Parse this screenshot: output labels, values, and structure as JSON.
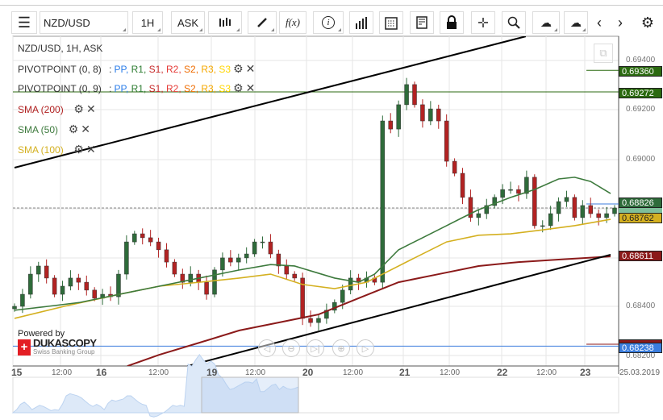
{
  "toolbar": {
    "symbol": "NZD/USD",
    "timeframe": "1H",
    "side": "ASK",
    "fx_label": "f(x)"
  },
  "legend": {
    "title": "NZD/USD, 1H, ASK",
    "pivot1": "PIVOTPOINT (0, 8)",
    "pivot2": "PIVOTPOINT (0, 9)",
    "sep": ":",
    "pivot_levels": [
      {
        "t": "PP",
        "c": "#2b7de9"
      },
      {
        "t": "R1",
        "c": "#2e7d32"
      },
      {
        "t": "S1",
        "c": "#c62828"
      },
      {
        "t": "R2",
        "c": "#e53935"
      },
      {
        "t": "S2",
        "c": "#ef6c00"
      },
      {
        "t": "R3",
        "c": "#f5a800"
      },
      {
        "t": "S3",
        "c": "#ffd600"
      }
    ],
    "sma200": "SMA (200)",
    "sma50": "SMA (50)",
    "sma100": "SMA (100)"
  },
  "colors": {
    "up": "#2e6b3a",
    "down": "#b22222",
    "sma200": "#8b1a1a",
    "sma50": "#3d7a3d",
    "sma100": "#d4b020",
    "trend": "#000000",
    "pp_blue": "#3b7ddd"
  },
  "price_ticks": [
    "0.69400",
    "0.69200",
    "0.69000",
    "0.68400",
    "0.68200"
  ],
  "price_tags": {
    "t1": "0.69360",
    "t2": "0.69272",
    "t3": "0.68826",
    "t4": "0.68762",
    "t5": "0.68611",
    "t6": "0.68238"
  },
  "time_axis": {
    "days": [
      "15",
      "16",
      "19",
      "20",
      "21",
      "22",
      "23"
    ],
    "noon": "12:00",
    "date": "25.03.2019"
  },
  "branding": {
    "powered": "Powered by",
    "name": "DUKASCOPY",
    "sub": "Swiss Banking Group"
  },
  "chart_data": {
    "type": "candlestick",
    "symbol": "NZD/USD",
    "interval": "1H",
    "ylim": [
      0.6814,
      0.695
    ],
    "closes": [
      0.684,
      0.68449,
      0.68531,
      0.68564,
      0.68515,
      0.68449,
      0.68482,
      0.68515,
      0.68498,
      0.68466,
      0.68433,
      0.68449,
      0.68439,
      0.68531,
      0.68662,
      0.68695,
      0.68679,
      0.68662,
      0.6863,
      0.6858,
      0.68531,
      0.68498,
      0.68531,
      0.68498,
      0.68449,
      0.68548,
      0.68597,
      0.6858,
      0.68597,
      0.68613,
      0.68662,
      0.68662,
      0.68613,
      0.68564,
      0.68531,
      0.68515,
      0.68351,
      0.68334,
      0.68351,
      0.68384,
      0.68416,
      0.68466,
      0.68515,
      0.68498,
      0.68515,
      0.68498,
      0.69154,
      0.69121,
      0.6922,
      0.69302,
      0.6922,
      0.69154,
      0.69203,
      0.69154,
      0.6899,
      0.68941,
      0.68843,
      0.68761,
      0.68777,
      0.6881,
      0.68843,
      0.68875,
      0.68875,
      0.68859,
      0.68925,
      0.68728,
      0.68728,
      0.68777,
      0.68826,
      0.68843,
      0.68761,
      0.6881,
      0.68777,
      0.68761,
      0.68777,
      0.688
    ],
    "sma50": [
      [
        0,
        0.68384
      ],
      [
        4.2,
        0.684
      ],
      [
        8.2,
        0.68416
      ],
      [
        13.1,
        0.68449
      ],
      [
        18.1,
        0.68482
      ],
      [
        23.1,
        0.68515
      ],
      [
        28.1,
        0.68548
      ],
      [
        32,
        0.6857
      ],
      [
        35,
        0.68564
      ],
      [
        40,
        0.68515
      ],
      [
        43,
        0.68498
      ],
      [
        45,
        0.68531
      ],
      [
        48,
        0.6863
      ],
      [
        51,
        0.68679
      ],
      [
        54,
        0.68728
      ],
      [
        56,
        0.68761
      ],
      [
        58,
        0.68793
      ],
      [
        62,
        0.68843
      ],
      [
        65,
        0.68875
      ],
      [
        68,
        0.68918
      ],
      [
        70,
        0.68925
      ],
      [
        72,
        0.68908
      ],
      [
        74.5,
        0.68859
      ]
    ],
    "sma100": [
      [
        0,
        0.68351
      ],
      [
        6.2,
        0.684
      ],
      [
        13.1,
        0.68449
      ],
      [
        18.1,
        0.68482
      ],
      [
        23.1,
        0.68498
      ],
      [
        28.1,
        0.68515
      ],
      [
        32,
        0.68531
      ],
      [
        36,
        0.68489
      ],
      [
        40,
        0.68472
      ],
      [
        44,
        0.68498
      ],
      [
        46,
        0.68531
      ],
      [
        50,
        0.68597
      ],
      [
        54,
        0.68662
      ],
      [
        58,
        0.68689
      ],
      [
        62,
        0.68695
      ],
      [
        66,
        0.68711
      ],
      [
        70,
        0.68728
      ],
      [
        74.5,
        0.68754
      ]
    ],
    "sma200": [
      [
        14.1,
        0.68157
      ],
      [
        18.1,
        0.68203
      ],
      [
        23.1,
        0.68252
      ],
      [
        28.1,
        0.68302
      ],
      [
        33,
        0.68334
      ],
      [
        38,
        0.68367
      ],
      [
        43,
        0.68433
      ],
      [
        48,
        0.68498
      ],
      [
        53,
        0.68531
      ],
      [
        58,
        0.68564
      ],
      [
        63,
        0.6858
      ],
      [
        68,
        0.6859
      ],
      [
        74.5,
        0.68603
      ]
    ],
    "trendlines": [
      [
        [
          0,
          0.68964
        ],
        [
          63.9,
          0.69498
        ]
      ],
      [
        [
          21.6,
          0.68157
        ],
        [
          74.5,
          0.6861
        ]
      ]
    ],
    "hlines": {
      "full": [
        0.69272,
        0.68238
      ],
      "current": 0.688
    }
  }
}
